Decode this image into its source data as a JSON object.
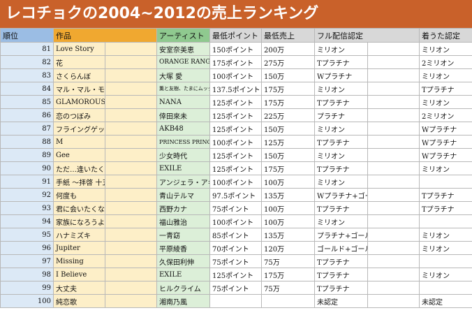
{
  "title": "レコチョクの2004~2012の売上ランキング",
  "headers": {
    "rank": "順位",
    "song": "作品",
    "artist": "アーティスト",
    "min_points": "最低ポイント",
    "min_sales": "最低売上",
    "full_cert": "フル配信認定",
    "ringtone_cert": "着うた認定"
  },
  "rows": [
    {
      "rank": "81",
      "song": "Love Story",
      "artist": "安室奈美恵",
      "points": "150ポイント",
      "sales": "200万",
      "full": "ミリオン",
      "ring": "ミリオン"
    },
    {
      "rank": "82",
      "song": "花",
      "artist": "ORANGE RANGE",
      "points": "175ポイント",
      "sales": "275万",
      "full": "Tプラチナ",
      "ring": "2ミリオン"
    },
    {
      "rank": "83",
      "song": "さくらんぼ",
      "artist": "大塚 愛",
      "points": "100ポイント",
      "sales": "150万",
      "full": "Wプラチナ",
      "ring": "ミリオン"
    },
    {
      "rank": "84",
      "song": "マル・マル・モリ・モリ！",
      "artist": "薫と友樹、たまにムック。",
      "points": "137.5ポイント",
      "sales": "175万",
      "full": "ミリオン",
      "ring": "Tプラチナ"
    },
    {
      "rank": "85",
      "song": "GLAMOROUS SKY",
      "artist": "NANA",
      "points": "125ポイント",
      "sales": "175万",
      "full": "Tプラチナ",
      "ring": "ミリオン"
    },
    {
      "rank": "86",
      "song": "恋のつぼみ",
      "artist": "倖田來未",
      "points": "125ポイント",
      "sales": "225万",
      "full": "プラチナ",
      "ring": "2ミリオン"
    },
    {
      "rank": "87",
      "song": "フライングゲット",
      "artist": "AKB48",
      "points": "125ポイント",
      "sales": "150万",
      "full": "ミリオン",
      "ring": "Wプラチナ"
    },
    {
      "rank": "88",
      "song": "M",
      "artist": "PRINCESS PRINCESS",
      "points": "100ポイント",
      "sales": "125万",
      "full": "Tプラチナ",
      "ring": "Wプラチナ"
    },
    {
      "rank": "89",
      "song": "Gee",
      "artist": "少女時代",
      "points": "125ポイント",
      "sales": "150万",
      "full": "ミリオン",
      "ring": "Wプラチナ"
    },
    {
      "rank": "90",
      "song": "ただ…逢いたくて",
      "artist": "EXILE",
      "points": "125ポイント",
      "sales": "175万",
      "full": "Tプラチナ",
      "ring": "ミリオン"
    },
    {
      "rank": "91",
      "song": "手紙 〜拝啓 十五の君へ〜",
      "artist": "アンジェラ・アキ",
      "points": "100ポイント",
      "sales": "100万",
      "full": "ミリオン",
      "ring": ""
    },
    {
      "rank": "92",
      "song": "何度も",
      "artist": "青山テルマ",
      "points": "97.5ポイント",
      "sales": "135万",
      "full": "Wプラチナ+ゴールド",
      "ring": "Tプラチナ"
    },
    {
      "rank": "93",
      "song": "君に会いたくなるから",
      "artist": "西野カナ",
      "points": "75ポイント",
      "sales": "100万",
      "full": "Tプラチナ",
      "ring": "Tプラチナ"
    },
    {
      "rank": "94",
      "song": "家族になろうよ",
      "artist": "福山雅治",
      "points": "100ポイント",
      "sales": "100万",
      "full": "ミリオン",
      "ring": ""
    },
    {
      "rank": "95",
      "song": "ハナミズキ",
      "artist": "一青窈",
      "points": "85ポイント",
      "sales": "135万",
      "full": "プラチナ+ゴールド",
      "ring": "ミリオン"
    },
    {
      "rank": "96",
      "song": "Jupiter",
      "artist": "平原綾香",
      "points": "70ポイント",
      "sales": "120万",
      "full": "ゴールド+ゴールド",
      "ring": "ミリオン"
    },
    {
      "rank": "97",
      "song": "Missing",
      "artist": "久保田利伸",
      "points": "75ポイント",
      "sales": "75万",
      "full": "Tプラチナ",
      "ring": ""
    },
    {
      "rank": "98",
      "song": "I Believe",
      "artist": "EXILE",
      "points": "125ポイント",
      "sales": "175万",
      "full": "Tプラチナ",
      "ring": "ミリオン"
    },
    {
      "rank": "99",
      "song": "大丈夫",
      "artist": "ヒルクライム",
      "points": "75ポイント",
      "sales": "75万",
      "full": "Tプラチナ",
      "ring": ""
    },
    {
      "rank": "100",
      "song": "純恋歌",
      "artist": "湘南乃風",
      "points": "",
      "sales": "",
      "full": "未認定",
      "ring": "未認定"
    }
  ]
}
